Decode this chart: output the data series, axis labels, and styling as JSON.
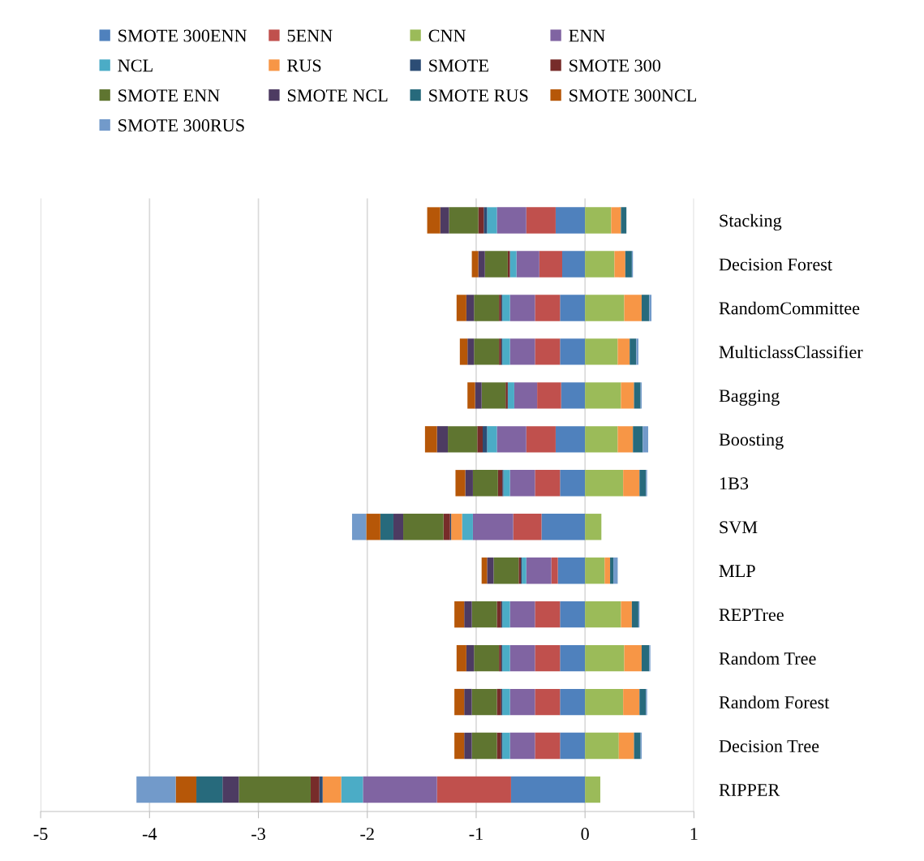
{
  "chart_data": {
    "type": "bar",
    "orientation": "horizontal",
    "stacked": true,
    "categories": [
      "Stacking",
      "Decision Forest",
      "RandomCommittee",
      "MulticlassClassifier",
      "Bagging",
      "Boosting",
      "1B3",
      "SVM",
      "MLP",
      "REPTree",
      "Random Tree",
      "Random Forest",
      "Decision Tree",
      "RIPPER"
    ],
    "series": [
      {
        "name": "SMOTE 300ENN",
        "color": "#4f81bd",
        "values": [
          -0.27,
          -0.21,
          -0.23,
          -0.23,
          -0.22,
          -0.27,
          -0.23,
          -0.4,
          -0.25,
          -0.23,
          -0.23,
          -0.23,
          -0.23,
          -0.68
        ]
      },
      {
        "name": "5ENN",
        "color": "#c0504d",
        "values": [
          -0.27,
          -0.21,
          -0.23,
          -0.23,
          -0.22,
          -0.27,
          -0.23,
          -0.26,
          -0.06,
          -0.23,
          -0.23,
          -0.23,
          -0.23,
          -0.68
        ]
      },
      {
        "name": "CNN",
        "color": "#9bbb59",
        "values": [
          0.24,
          0.27,
          0.36,
          0.3,
          0.33,
          0.3,
          0.35,
          0.15,
          0.18,
          0.33,
          0.36,
          0.35,
          0.31,
          0.14
        ]
      },
      {
        "name": "ENN",
        "color": "#8064a2",
        "values": [
          -0.27,
          -0.21,
          -0.23,
          -0.23,
          -0.21,
          -0.27,
          -0.23,
          -0.37,
          -0.23,
          -0.23,
          -0.23,
          -0.23,
          -0.23,
          -0.68
        ]
      },
      {
        "name": "NCL",
        "color": "#4bacc6",
        "values": [
          -0.09,
          -0.06,
          -0.07,
          -0.07,
          -0.06,
          -0.09,
          -0.06,
          -0.1,
          -0.04,
          -0.07,
          -0.07,
          -0.07,
          -0.07,
          -0.2
        ]
      },
      {
        "name": "RUS",
        "color": "#f79646",
        "values": [
          0.09,
          0.1,
          0.16,
          0.11,
          0.12,
          0.14,
          0.15,
          -0.1,
          0.05,
          0.1,
          0.16,
          0.15,
          0.14,
          -0.17
        ]
      },
      {
        "name": "SMOTE",
        "color": "#2c4d75",
        "values": [
          -0.03,
          0,
          -0.01,
          -0.01,
          0,
          -0.04,
          -0.01,
          -0.01,
          -0.01,
          -0.01,
          -0.01,
          -0.01,
          -0.01,
          -0.03
        ]
      },
      {
        "name": "SMOTE 300",
        "color": "#772c2a",
        "values": [
          -0.05,
          -0.02,
          -0.02,
          -0.02,
          -0.02,
          -0.05,
          -0.04,
          -0.06,
          -0.02,
          -0.04,
          -0.02,
          -0.04,
          -0.04,
          -0.08
        ]
      },
      {
        "name": "SMOTE ENN",
        "color": "#5f7530",
        "values": [
          -0.27,
          -0.21,
          -0.23,
          -0.23,
          -0.22,
          -0.27,
          -0.23,
          -0.37,
          -0.23,
          -0.23,
          -0.23,
          -0.23,
          -0.23,
          -0.66
        ]
      },
      {
        "name": "SMOTE NCL",
        "color": "#4d3b62",
        "values": [
          -0.08,
          -0.06,
          -0.07,
          -0.06,
          -0.06,
          -0.1,
          -0.07,
          -0.09,
          -0.06,
          -0.07,
          -0.07,
          -0.07,
          -0.07,
          -0.15
        ]
      },
      {
        "name": "SMOTE RUS",
        "color": "#276a7c",
        "values": [
          0.05,
          0.06,
          0.07,
          0.06,
          0.06,
          0.09,
          0.06,
          -0.12,
          0.03,
          0.06,
          0.07,
          0.06,
          0.06,
          -0.24
        ]
      },
      {
        "name": "SMOTE 300NCL",
        "color": "#b65708",
        "values": [
          -0.12,
          -0.06,
          -0.09,
          -0.07,
          -0.07,
          -0.11,
          -0.09,
          -0.13,
          -0.05,
          -0.09,
          -0.09,
          -0.09,
          -0.09,
          -0.19
        ]
      },
      {
        "name": "SMOTE 300RUS",
        "color": "#729aca",
        "values": [
          0,
          0.01,
          0.02,
          0.02,
          0.01,
          0.05,
          0.01,
          -0.13,
          0.04,
          0.01,
          0.01,
          0.01,
          0.01,
          -0.36
        ]
      }
    ],
    "xlim": [
      -5,
      1
    ],
    "xticks": [
      -5,
      -4,
      -3,
      -2,
      -1,
      0,
      1
    ],
    "grid": "x",
    "legend": "top"
  }
}
